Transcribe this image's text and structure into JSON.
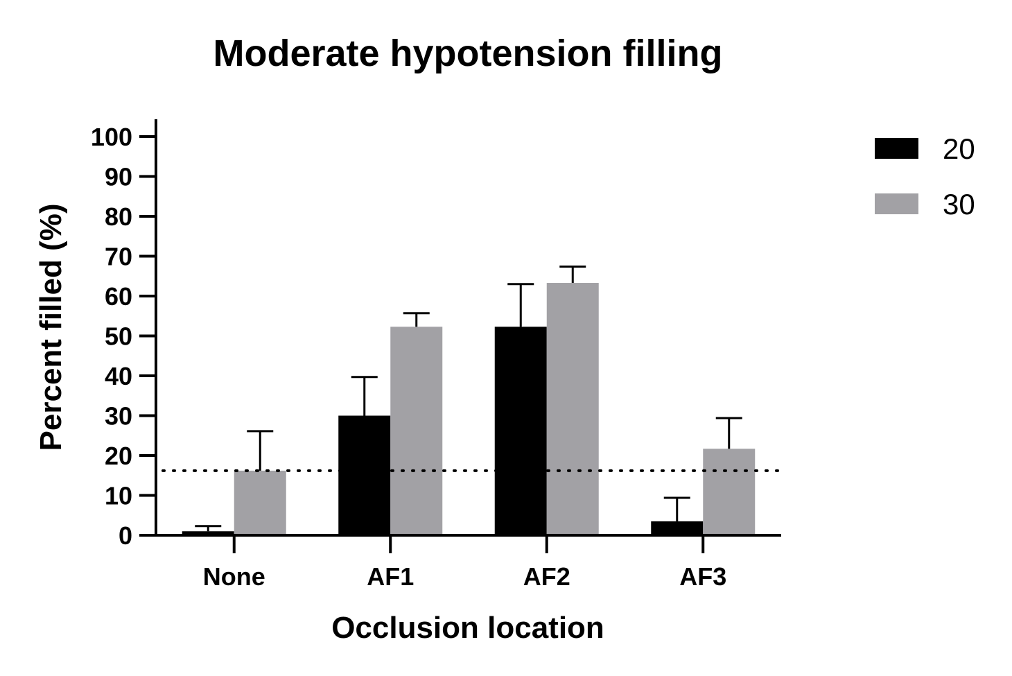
{
  "chart_data": {
    "type": "bar",
    "title": "Moderate hypotension filling",
    "xlabel": "Occlusion location",
    "ylabel": "Percent filled (%)",
    "categories": [
      "None",
      "AF1",
      "AF2",
      "AF3"
    ],
    "series": [
      {
        "name": "20",
        "color": "#000000",
        "values": [
          1,
          30,
          52.3,
          3.5
        ],
        "error_upper": [
          2.3,
          39.7,
          63,
          9.4
        ]
      },
      {
        "name": "30",
        "color": "#a2a1a5",
        "values": [
          16.2,
          52.3,
          63.3,
          21.7
        ],
        "error_upper": [
          26.1,
          55.7,
          67.4,
          29.4
        ]
      }
    ],
    "ylim": [
      0,
      100
    ],
    "yticks": [
      0,
      10,
      20,
      30,
      40,
      50,
      60,
      70,
      80,
      90,
      100
    ],
    "ytick_labels": [
      "0",
      "10",
      "20",
      "30",
      "40",
      "50",
      "60",
      "70",
      "80",
      "90",
      "100"
    ],
    "reference_line": {
      "y": 16.2,
      "style": "dotted"
    },
    "legend": {
      "position": "top-right"
    },
    "grid": false
  }
}
